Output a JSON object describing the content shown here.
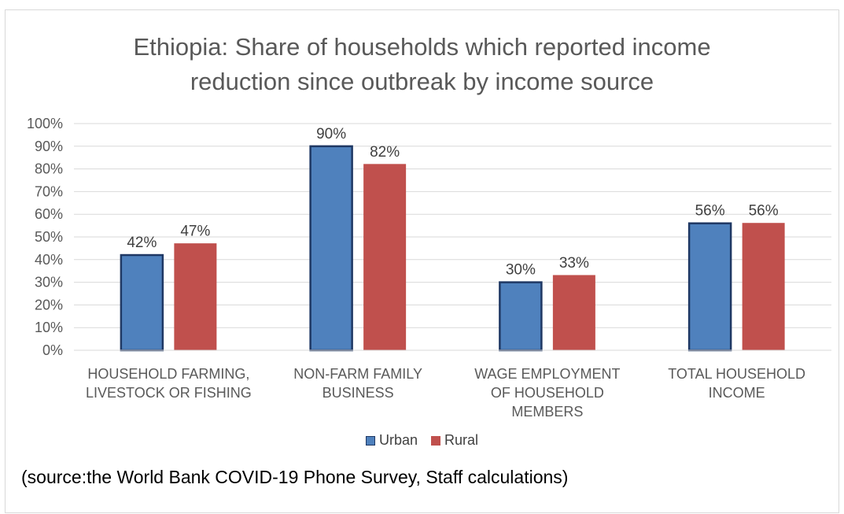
{
  "colors": {
    "urban_fill": "#4f81bd",
    "urban_stroke": "#1f3864",
    "rural_fill": "#c0504d",
    "rural_stroke": "#c0504d",
    "grid": "#d9d9d9",
    "text": "#595959"
  },
  "source_note": "(source:the World Bank COVID-19 Phone Survey, Staff calculations)",
  "chart_data": {
    "type": "bar",
    "title_lines": [
      "Ethiopia: Share of households which reported income",
      "reduction since outbreak by income source"
    ],
    "categories": [
      [
        "HOUSEHOLD FARMING,",
        "LIVESTOCK OR FISHING"
      ],
      [
        "NON-FARM FAMILY",
        "BUSINESS"
      ],
      [
        "WAGE EMPLOYMENT",
        "OF HOUSEHOLD",
        "MEMBERS"
      ],
      [
        "TOTAL HOUSEHOLD",
        "INCOME"
      ]
    ],
    "series": [
      {
        "name": "Urban",
        "values": [
          42,
          90,
          30,
          56
        ],
        "labels": [
          "42%",
          "90%",
          "30%",
          "56%"
        ]
      },
      {
        "name": "Rural",
        "values": [
          47,
          82,
          33,
          56
        ],
        "labels": [
          "47%",
          "82%",
          "33%",
          "56%"
        ]
      }
    ],
    "ylim": [
      0,
      100
    ],
    "yticks": [
      "0%",
      "10%",
      "20%",
      "30%",
      "40%",
      "50%",
      "60%",
      "70%",
      "80%",
      "90%",
      "100%"
    ],
    "grid": true,
    "legend_position": "bottom"
  }
}
